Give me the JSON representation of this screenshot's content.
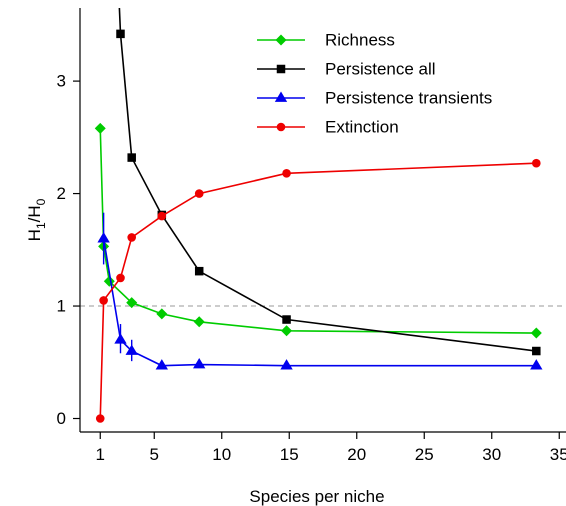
{
  "chart_data": {
    "type": "line",
    "xlabel": "Species per niche",
    "ylabel": {
      "main": "H",
      "sub1": "1",
      "slash": "/H",
      "sub0": "0"
    },
    "xlim": [
      -0.5,
      35.5
    ],
    "ylim": [
      -0.12,
      3.65
    ],
    "xticks": [
      1,
      5,
      10,
      15,
      20,
      25,
      30,
      35
    ],
    "yticks": [
      0,
      1,
      2,
      3
    ],
    "reference_line_y": 1,
    "grid": false,
    "legend_position": "top-right",
    "series": [
      {
        "name": "Richness",
        "color": "#00cc00",
        "marker": "diamond",
        "x": [
          1,
          1.25,
          1.67,
          3.33,
          5.56,
          8.33,
          14.8,
          33.3
        ],
        "y": [
          2.58,
          1.53,
          1.22,
          1.03,
          0.93,
          0.86,
          0.78,
          0.76
        ]
      },
      {
        "name": "Persistence all",
        "color": "#000000",
        "marker": "square",
        "x": [
          2.5,
          3.33,
          5.56,
          8.33,
          14.8,
          33.3
        ],
        "y": [
          3.42,
          2.32,
          1.81,
          1.31,
          0.88,
          0.6
        ],
        "extend_from": {
          "x": 2.4,
          "y": 3.7
        }
      },
      {
        "name": "Persistence transients",
        "color": "#0000ee",
        "marker": "triangle",
        "x": [
          1.25,
          2.5,
          3.33,
          5.56,
          8.33,
          14.8,
          33.3
        ],
        "y": [
          1.6,
          0.7,
          0.6,
          0.47,
          0.48,
          0.47,
          0.47
        ],
        "errors": [
          {
            "x": 1.25,
            "low": 1.37,
            "high": 1.83
          },
          {
            "x": 2.5,
            "low": 0.58,
            "high": 0.84
          },
          {
            "x": 3.33,
            "low": 0.51,
            "high": 0.7
          }
        ]
      },
      {
        "name": "Extinction",
        "color": "#ee0000",
        "marker": "circle",
        "x": [
          1,
          1.25,
          2.5,
          3.33,
          5.56,
          8.33,
          14.8,
          33.3
        ],
        "y": [
          0,
          1.05,
          1.25,
          1.61,
          1.8,
          2.0,
          2.18,
          2.27
        ]
      }
    ]
  }
}
